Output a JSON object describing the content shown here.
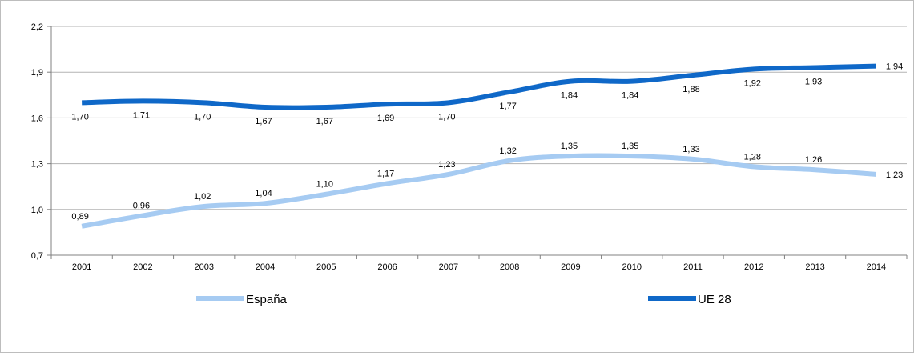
{
  "chart_data": {
    "type": "line",
    "categories": [
      "2001",
      "2002",
      "2003",
      "2004",
      "2005",
      "2006",
      "2007",
      "2008",
      "2009",
      "2010",
      "2011",
      "2012",
      "2013",
      "2014"
    ],
    "ylim": [
      0.7,
      2.2
    ],
    "yticks": [
      0.7,
      1.0,
      1.3,
      1.6,
      1.9,
      2.2
    ],
    "ytick_labels": [
      "0,7",
      "1,0",
      "1,3",
      "1,6",
      "1,9",
      "2,2"
    ],
    "grid": true,
    "legend_position": "bottom",
    "series": [
      {
        "name": "España",
        "color": "#a6cbf2",
        "values": [
          0.89,
          0.96,
          1.02,
          1.04,
          1.1,
          1.17,
          1.23,
          1.32,
          1.35,
          1.35,
          1.33,
          1.28,
          1.26,
          1.23
        ],
        "labels": [
          "0,89",
          "0,96",
          "1,02",
          "1,04",
          "1,10",
          "1,17",
          "1,23",
          "1,32",
          "1,35",
          "1,35",
          "1,33",
          "1,28",
          "1,26",
          "1,23"
        ]
      },
      {
        "name": "UE 28",
        "color": "#0f68c8",
        "values": [
          1.7,
          1.71,
          1.7,
          1.67,
          1.67,
          1.69,
          1.7,
          1.77,
          1.84,
          1.84,
          1.88,
          1.92,
          1.93,
          1.94
        ],
        "labels": [
          "1,70",
          "1,71",
          "1,70",
          "1,67",
          "1,67",
          "1,69",
          "1,70",
          "1,77",
          "1,84",
          "1,84",
          "1,88",
          "1,92",
          "1,93",
          "1,94"
        ]
      }
    ]
  }
}
